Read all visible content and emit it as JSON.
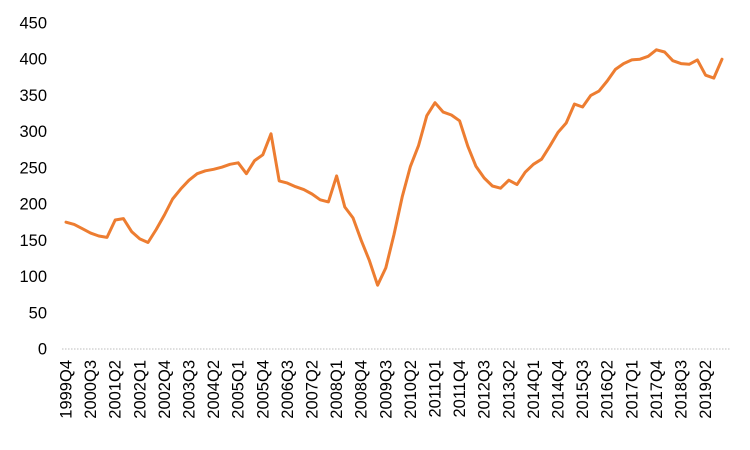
{
  "chart_data": {
    "type": "line",
    "title": "",
    "xlabel": "",
    "ylabel": "",
    "legend": "none",
    "grid": "off",
    "ylim": [
      0,
      450
    ],
    "y_ticks": [
      0,
      50,
      100,
      150,
      200,
      250,
      300,
      350,
      400,
      450
    ],
    "x_tick_every": 3,
    "x_tick_labels": [
      "1999Q4",
      "2000Q3",
      "2001Q2",
      "2002Q1",
      "2002Q4",
      "2003Q3",
      "2004Q2",
      "2005Q1",
      "2005Q4",
      "2006Q3",
      "2007Q2",
      "2008Q1",
      "2008Q4",
      "2009Q3",
      "2010Q2",
      "2011Q1",
      "2011Q4",
      "2012Q3",
      "2013Q2",
      "2014Q1",
      "2014Q4",
      "2015Q3",
      "2016Q2",
      "2017Q1",
      "2017Q4",
      "2018Q3",
      "2019Q2"
    ],
    "categories": [
      "1999Q4",
      "2000Q1",
      "2000Q2",
      "2000Q3",
      "2000Q4",
      "2001Q1",
      "2001Q2",
      "2001Q3",
      "2001Q4",
      "2002Q1",
      "2002Q2",
      "2002Q3",
      "2002Q4",
      "2003Q1",
      "2003Q2",
      "2003Q3",
      "2003Q4",
      "2004Q1",
      "2004Q2",
      "2004Q3",
      "2004Q4",
      "2005Q1",
      "2005Q2",
      "2005Q3",
      "2005Q4",
      "2006Q1",
      "2006Q2",
      "2006Q3",
      "2006Q4",
      "2007Q1",
      "2007Q2",
      "2007Q3",
      "2007Q4",
      "2008Q1",
      "2008Q2",
      "2008Q3",
      "2008Q4",
      "2009Q1",
      "2009Q2",
      "2009Q3",
      "2009Q4",
      "2010Q1",
      "2010Q2",
      "2010Q3",
      "2010Q4",
      "2011Q1",
      "2011Q2",
      "2011Q3",
      "2011Q4",
      "2012Q1",
      "2012Q2",
      "2012Q3",
      "2012Q4",
      "2013Q1",
      "2013Q2",
      "2013Q3",
      "2013Q4",
      "2014Q1",
      "2014Q2",
      "2014Q3",
      "2014Q4",
      "2015Q1",
      "2015Q2",
      "2015Q3",
      "2015Q4",
      "2016Q1",
      "2016Q2",
      "2016Q3",
      "2016Q4",
      "2017Q1",
      "2017Q2",
      "2017Q3",
      "2017Q4",
      "2018Q1",
      "2018Q2",
      "2018Q3",
      "2018Q4",
      "2019Q1",
      "2019Q2",
      "2019Q3",
      "2019Q4"
    ],
    "values": [
      175,
      172,
      166,
      160,
      156,
      154,
      178,
      180,
      162,
      152,
      147,
      165,
      185,
      207,
      221,
      233,
      242,
      246,
      248,
      251,
      255,
      257,
      242,
      260,
      268,
      297,
      232,
      229,
      224,
      220,
      214,
      206,
      203,
      239,
      196,
      181,
      150,
      122,
      88,
      112,
      158,
      210,
      252,
      281,
      322,
      340,
      327,
      323,
      315,
      280,
      252,
      236,
      225,
      222,
      233,
      227,
      244,
      255,
      262,
      280,
      299,
      312,
      338,
      334,
      350,
      356,
      370,
      386,
      394,
      399,
      400,
      404,
      413,
      410,
      398,
      394,
      393,
      399,
      378,
      374,
      400
    ],
    "line_color": "#ED7D31",
    "line_width": 3,
    "axis_baseline_color": "#C9C9C9",
    "tick_label_color": "#000000"
  }
}
